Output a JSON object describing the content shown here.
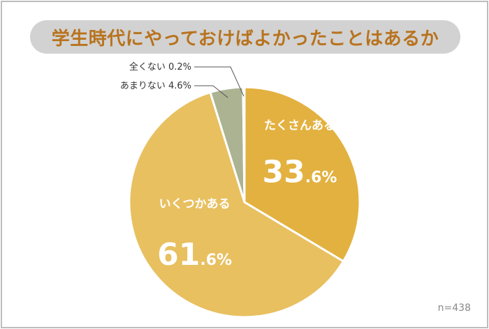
{
  "chart_data": {
    "type": "pie",
    "title": "学生時代にやっておけばよかったことはあるか",
    "slices": [
      {
        "label": "たくさんある",
        "value": 33.6,
        "color": "#e3b13f",
        "label_pos": "inside"
      },
      {
        "label": "いくつかある",
        "value": 61.6,
        "color": "#e8c060",
        "label_pos": "inside"
      },
      {
        "label": "あまりない",
        "value": 4.6,
        "color": "#abb393",
        "label_pos": "outside"
      },
      {
        "label": "全くない",
        "value": 0.2,
        "color": "#8a8a8a",
        "label_pos": "outside"
      }
    ],
    "sample_size": "n=438"
  }
}
